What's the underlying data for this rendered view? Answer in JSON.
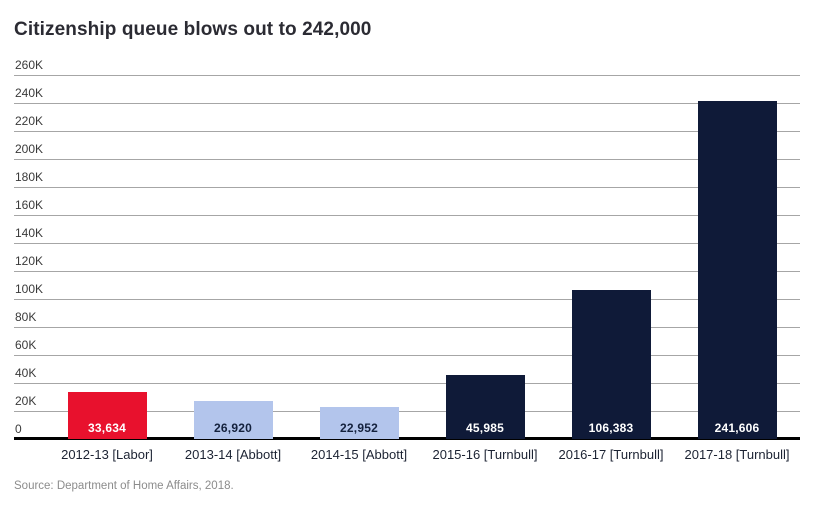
{
  "title": "Citizenship queue blows out to 242,000",
  "source": "Source: Department of Home Affairs, 2018.",
  "colors": {
    "red": "#e8112d",
    "light_blue": "#b3c5ec",
    "navy": "#0f1a38",
    "grid": "#a6a6a6",
    "axis": "#000000",
    "title_text": "#2b2b33",
    "tick_text": "#3a3a3a",
    "category_text": "#1c2333",
    "source_text": "#8c8c8c",
    "label_on_dark": "#ffffff",
    "label_on_light": "#14213d"
  },
  "chart_data": {
    "type": "bar",
    "title": "Citizenship queue blows out to 242,000",
    "categories": [
      "2012-13 [Labor]",
      "2013-14 [Abbott]",
      "2014-15 [Abbott]",
      "2015-16 [Turnbull]",
      "2016-17 [Turnbull]",
      "2017-18 [Turnbull]"
    ],
    "values": [
      33634,
      26920,
      22952,
      45985,
      106383,
      241606
    ],
    "value_labels": [
      "33,634",
      "26,920",
      "22,952",
      "45,985",
      "106,383",
      "241,606"
    ],
    "bar_colors": [
      "red",
      "light_blue",
      "light_blue",
      "navy",
      "navy",
      "navy"
    ],
    "value_label_colors": [
      "label_on_dark",
      "label_on_light",
      "label_on_light",
      "label_on_dark",
      "label_on_dark",
      "label_on_dark"
    ],
    "xlabel": "",
    "ylabel": "",
    "ylim": [
      0,
      260000
    ],
    "ytick_step": 20000,
    "ytick_labels": [
      "260K",
      "240K",
      "220K",
      "200K",
      "180K",
      "160K",
      "140K",
      "120K",
      "100K",
      "80K",
      "60K",
      "40K",
      "20K",
      "0"
    ],
    "grid": true,
    "legend": false,
    "value_labels_position": "inside-bottom",
    "source": "Source: Department of Home Affairs, 2018."
  }
}
